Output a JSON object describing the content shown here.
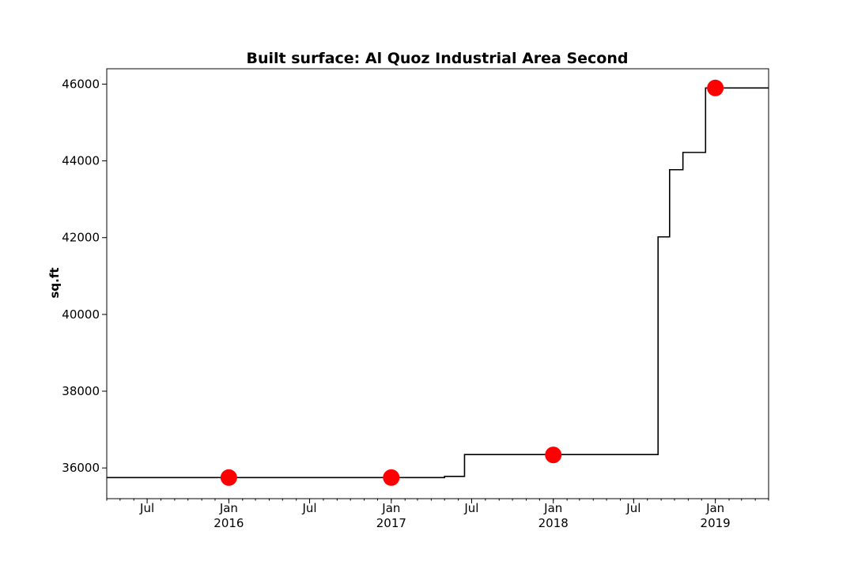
{
  "chart_data": {
    "type": "line",
    "title": "Built surface: Al Quoz Industrial Area Second",
    "xlabel": "",
    "ylabel": "sq.ft",
    "xlim": [
      "2015-04-01",
      "2019-05-01"
    ],
    "ylim": [
      35200,
      46400
    ],
    "grid": false,
    "yticks": [
      36000,
      38000,
      40000,
      42000,
      44000,
      46000
    ],
    "ytick_labels": [
      "36000",
      "38000",
      "40000",
      "42000",
      "44000",
      "46000"
    ],
    "xticks": [
      {
        "date": "2015-07-01",
        "label": "Jul",
        "year": ""
      },
      {
        "date": "2016-01-01",
        "label": "Jan",
        "year": "2016"
      },
      {
        "date": "2016-07-01",
        "label": "Jul",
        "year": ""
      },
      {
        "date": "2017-01-01",
        "label": "Jan",
        "year": "2017"
      },
      {
        "date": "2017-07-01",
        "label": "Jul",
        "year": ""
      },
      {
        "date": "2018-01-01",
        "label": "Jan",
        "year": "2018"
      },
      {
        "date": "2018-07-01",
        "label": "Jul",
        "year": ""
      },
      {
        "date": "2019-01-01",
        "label": "Jan",
        "year": "2019"
      }
    ],
    "series": [
      {
        "style": "step",
        "color": "#000000",
        "x": [
          "2015-04-01",
          "2017-05-01",
          "2017-06-15",
          "2018-08-25",
          "2018-09-20",
          "2018-10-20",
          "2018-12-10",
          "2019-05-01"
        ],
        "y": [
          35750,
          35780,
          36350,
          42020,
          43770,
          44220,
          45900,
          45900
        ]
      },
      {
        "style": "markers",
        "color": "#ff0000",
        "x": [
          "2016-01-01",
          "2017-01-01",
          "2018-01-01",
          "2019-01-01"
        ],
        "y": [
          35750,
          35750,
          36340,
          45900
        ]
      }
    ]
  }
}
